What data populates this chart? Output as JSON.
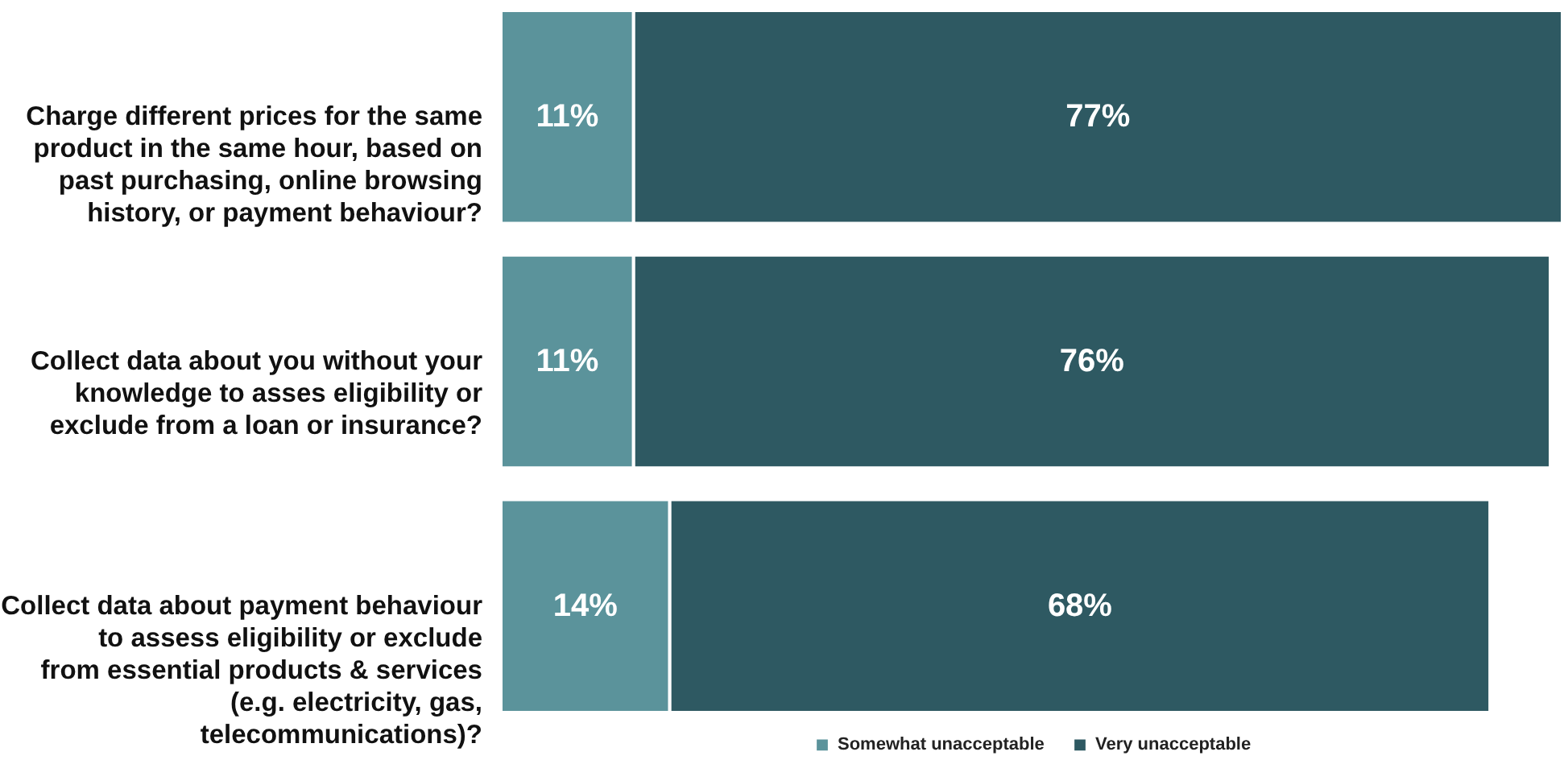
{
  "chart_data": {
    "type": "bar",
    "orientation": "horizontal",
    "stacked": true,
    "data_labels": true,
    "legend": "bottom",
    "categories": [
      "Charge different prices for the same product in the same hour, based on past purchasing, online browsing history, or payment behaviour?",
      "Collect data about you without your knowledge to asses eligibility or exclude from a loan or insurance?",
      "Collect data about payment behaviour to assess eligibility or exclude from essential products & services (e.g. electricity, gas, telecommunications)?"
    ],
    "series": [
      {
        "name": "Somewhat unacceptable",
        "color": "#5b939b",
        "values": [
          11,
          11,
          14
        ],
        "value_labels": [
          "11%",
          "11%",
          "14%"
        ]
      },
      {
        "name": "Very unacceptable",
        "color": "#2e5962",
        "values": [
          77,
          76,
          68
        ],
        "value_labels": [
          "77%",
          "76%",
          "68%"
        ]
      }
    ]
  }
}
